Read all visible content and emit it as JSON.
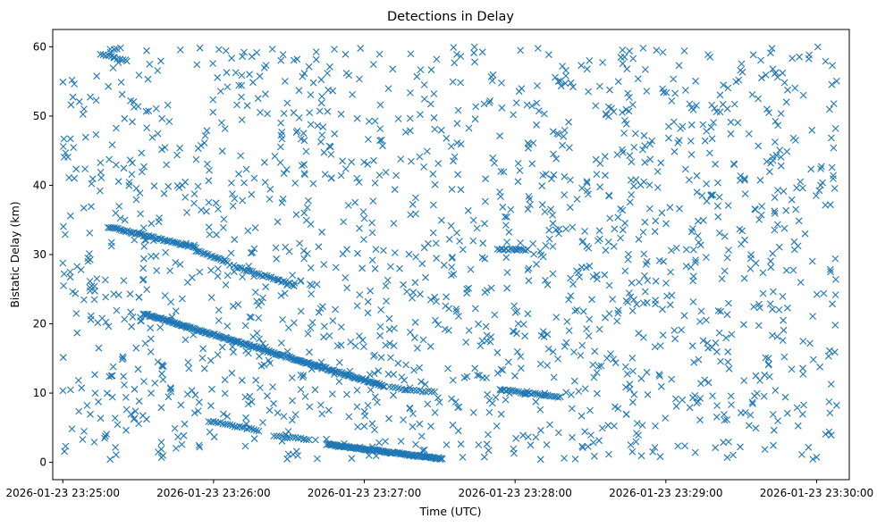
{
  "chart_data": {
    "type": "scatter",
    "title": "Detections in Delay",
    "xlabel": "Time (UTC)",
    "ylabel": "Bistatic Delay (km)",
    "marker": "x",
    "color": "#1f77b4",
    "x_start": "2026-01-23 23:24:56",
    "x_end": "2026-01-23 23:30:13",
    "xlim": [
      "2026-01-23 23:24:56",
      "2026-01-23 23:30:13"
    ],
    "ylim": [
      -2.5,
      62.5
    ],
    "x_ticks": [
      "2026-01-23 23:25:00",
      "2026-01-23 23:26:00",
      "2026-01-23 23:27:00",
      "2026-01-23 23:28:00",
      "2026-01-23 23:29:00",
      "2026-01-23 23:30:00"
    ],
    "y_ticks": [
      0,
      10,
      20,
      30,
      40,
      50,
      60
    ],
    "grid": false,
    "legend": "none",
    "tracks": [
      {
        "t_start": "2026-01-23 23:25:18",
        "t_end": "2026-01-23 23:25:53",
        "y_start": 34.0,
        "y_end": 31.0,
        "n": 55
      },
      {
        "t_start": "2026-01-23 23:25:53",
        "t_end": "2026-01-23 23:26:05",
        "y_start": 30.6,
        "y_end": 29.0,
        "n": 18
      },
      {
        "t_start": "2026-01-23 23:26:08",
        "t_end": "2026-01-23 23:26:32",
        "y_start": 28.3,
        "y_end": 25.6,
        "n": 30
      },
      {
        "t_start": "2026-01-23 23:25:32",
        "t_end": "2026-01-23 23:27:08",
        "y_start": 21.5,
        "y_end": 11.0,
        "n": 200
      },
      {
        "t_start": "2026-01-23 23:27:10",
        "t_end": "2026-01-23 23:27:28",
        "y_start": 10.8,
        "y_end": 10.1,
        "n": 16
      },
      {
        "t_start": "2026-01-23 23:27:54",
        "t_end": "2026-01-23 23:28:18",
        "y_start": 10.5,
        "y_end": 9.4,
        "n": 30
      },
      {
        "t_start": "2026-01-23 23:26:45",
        "t_end": "2026-01-23 23:27:31",
        "y_start": 2.6,
        "y_end": 0.5,
        "n": 120
      },
      {
        "t_start": "2026-01-23 23:25:58",
        "t_end": "2026-01-23 23:26:18",
        "y_start": 6.0,
        "y_end": 4.6,
        "n": 22
      },
      {
        "t_start": "2026-01-23 23:26:24",
        "t_end": "2026-01-23 23:26:38",
        "y_start": 3.8,
        "y_end": 3.3,
        "n": 14
      },
      {
        "t_start": "2026-01-23 23:27:53",
        "t_end": "2026-01-23 23:28:05",
        "y_start": 30.7,
        "y_end": 30.7,
        "n": 15
      },
      {
        "t_start": "2026-01-23 23:25:15",
        "t_end": "2026-01-23 23:25:25",
        "y_start": 59.0,
        "y_end": 58.0,
        "n": 10
      }
    ],
    "noise": {
      "t_start": "2026-01-23 23:25:00",
      "t_end": "2026-01-23 23:30:08",
      "y_min": 0.4,
      "y_max": 60,
      "n": 1650,
      "seed": 7
    }
  }
}
